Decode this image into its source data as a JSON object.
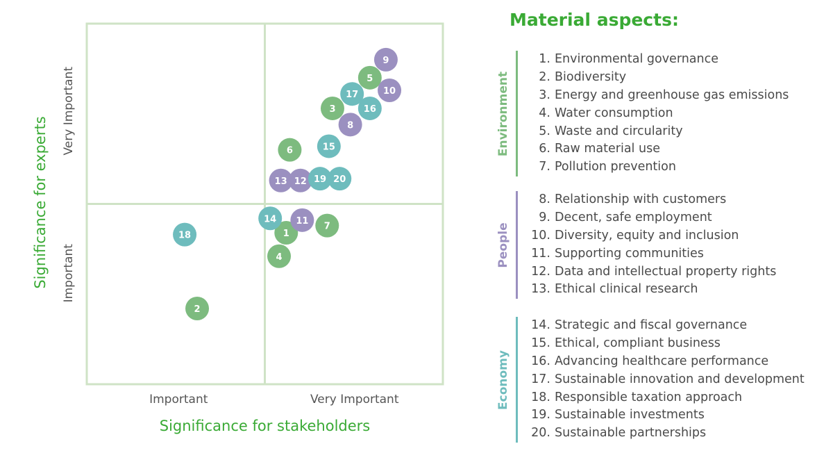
{
  "chart_data": {
    "type": "scatter",
    "title": "",
    "xlabel": "Significance for stakeholders",
    "ylabel": "Significance for experts",
    "xlim": [
      0,
      2
    ],
    "ylim": [
      0,
      2
    ],
    "x_tick_labels": [
      "Important",
      "Very Important"
    ],
    "y_tick_labels": [
      "Important",
      "Very Important"
    ],
    "quadrant_dividers": {
      "x": 1,
      "y": 1
    },
    "grid": false,
    "points": [
      {
        "id": "1",
        "x": 1.12,
        "y": 0.84,
        "group": "Environment"
      },
      {
        "id": "2",
        "x": 0.62,
        "y": 0.42,
        "group": "Environment"
      },
      {
        "id": "3",
        "x": 1.38,
        "y": 1.53,
        "group": "Environment"
      },
      {
        "id": "4",
        "x": 1.08,
        "y": 0.71,
        "group": "Environment"
      },
      {
        "id": "5",
        "x": 1.59,
        "y": 1.7,
        "group": "Environment"
      },
      {
        "id": "6",
        "x": 1.14,
        "y": 1.3,
        "group": "Environment"
      },
      {
        "id": "7",
        "x": 1.35,
        "y": 0.88,
        "group": "Environment"
      },
      {
        "id": "8",
        "x": 1.48,
        "y": 1.44,
        "group": "People"
      },
      {
        "id": "9",
        "x": 1.68,
        "y": 1.8,
        "group": "People"
      },
      {
        "id": "10",
        "x": 1.7,
        "y": 1.63,
        "group": "People"
      },
      {
        "id": "11",
        "x": 1.21,
        "y": 0.91,
        "group": "People"
      },
      {
        "id": "12",
        "x": 1.2,
        "y": 1.13,
        "group": "People"
      },
      {
        "id": "13",
        "x": 1.09,
        "y": 1.13,
        "group": "People"
      },
      {
        "id": "14",
        "x": 1.03,
        "y": 0.92,
        "group": "Economy"
      },
      {
        "id": "15",
        "x": 1.36,
        "y": 1.32,
        "group": "Economy"
      },
      {
        "id": "16",
        "x": 1.59,
        "y": 1.53,
        "group": "Economy"
      },
      {
        "id": "17",
        "x": 1.49,
        "y": 1.61,
        "group": "Economy"
      },
      {
        "id": "18",
        "x": 0.55,
        "y": 0.83,
        "group": "Economy"
      },
      {
        "id": "19",
        "x": 1.31,
        "y": 1.14,
        "group": "Economy"
      },
      {
        "id": "20",
        "x": 1.42,
        "y": 1.14,
        "group": "Economy"
      }
    ]
  },
  "colors": {
    "Environment": "#7dbb7f",
    "People": "#9b90c0",
    "Economy": "#6ebcbd",
    "grid_lines": "#cfe3c6",
    "accent": "#3aaa35"
  },
  "legend": {
    "title": "Material aspects:",
    "groups": [
      {
        "name": "Environment",
        "items": [
          {
            "num": "1.",
            "label": "Environmental governance"
          },
          {
            "num": "2.",
            "label": "Biodiversity"
          },
          {
            "num": "3.",
            "label": "Energy and greenhouse gas emissions"
          },
          {
            "num": "4.",
            "label": "Water consumption"
          },
          {
            "num": "5.",
            "label": "Waste and circularity"
          },
          {
            "num": "6.",
            "label": "Raw material use"
          },
          {
            "num": "7.",
            "label": "Pollution prevention"
          }
        ]
      },
      {
        "name": "People",
        "items": [
          {
            "num": "8.",
            "label": "Relationship with customers"
          },
          {
            "num": "9.",
            "label": "Decent, safe employment"
          },
          {
            "num": "10.",
            "label": "Diversity, equity and inclusion"
          },
          {
            "num": "11.",
            "label": "Supporting communities"
          },
          {
            "num": "12.",
            "label": "Data and intellectual property rights"
          },
          {
            "num": "13.",
            "label": "Ethical clinical research"
          }
        ]
      },
      {
        "name": "Economy",
        "items": [
          {
            "num": "14.",
            "label": "Strategic and fiscal governance"
          },
          {
            "num": "15.",
            "label": "Ethical, compliant business"
          },
          {
            "num": "16.",
            "label": "Advancing healthcare performance"
          },
          {
            "num": "17.",
            "label": "Sustainable innovation and development"
          },
          {
            "num": "18.",
            "label": "Responsible taxation approach"
          },
          {
            "num": "19.",
            "label": "Sustainable investments"
          },
          {
            "num": "20.",
            "label": "Sustainable partnerships"
          }
        ]
      }
    ]
  }
}
